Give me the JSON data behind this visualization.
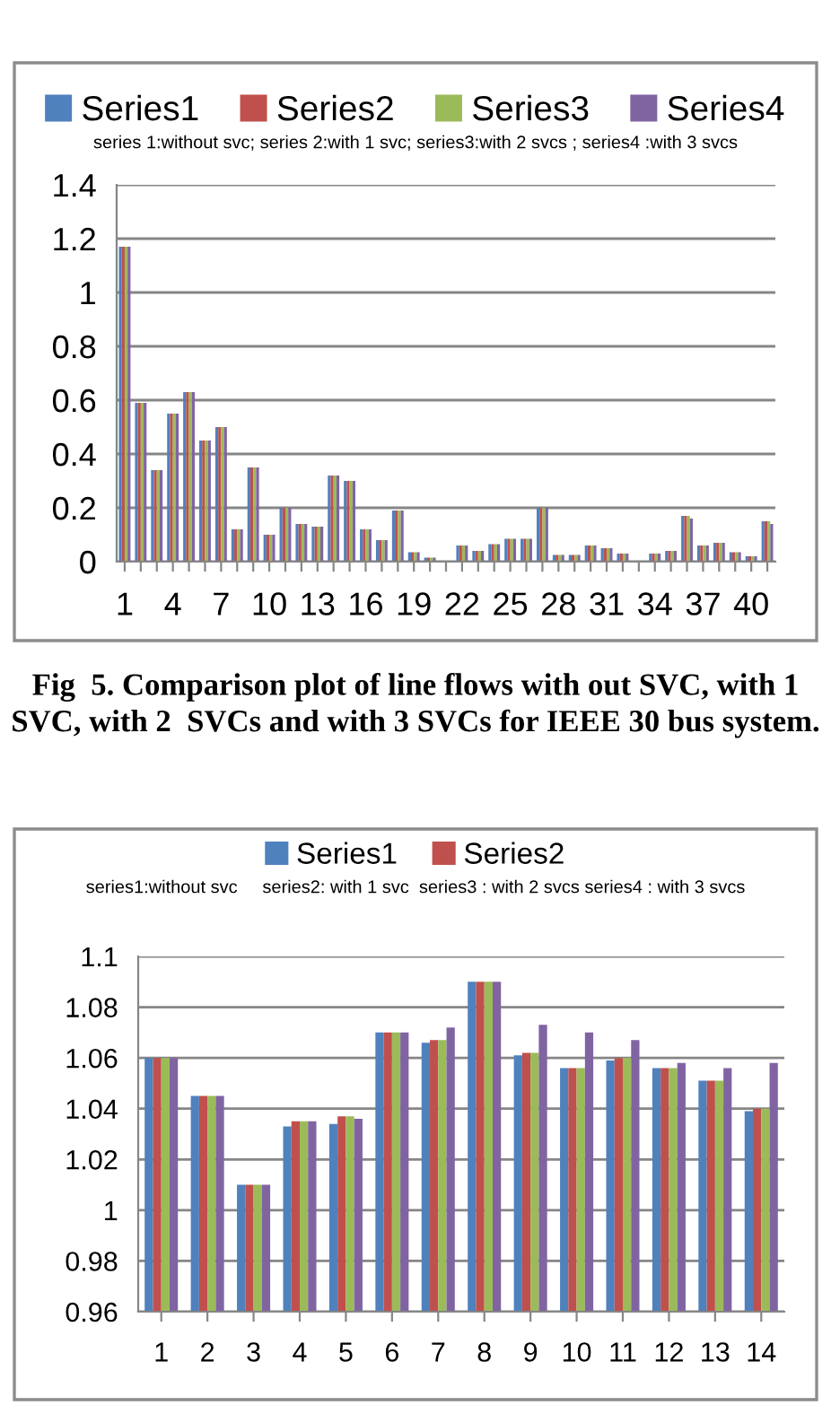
{
  "chart_data": [
    {
      "type": "bar",
      "subtitle": "series 1:without svc; series 2:with 1 svc; series3:with 2 svcs ; series4 :with 3 svcs",
      "categories": [
        "1",
        null,
        null,
        "4",
        null,
        null,
        "7",
        null,
        null,
        "10",
        null,
        null,
        "13",
        null,
        null,
        "16",
        null,
        null,
        "19",
        null,
        null,
        "22",
        null,
        null,
        "25",
        null,
        null,
        "28",
        null,
        null,
        "31",
        null,
        null,
        "34",
        null,
        null,
        "37",
        null,
        null,
        "40",
        null
      ],
      "series": [
        {
          "name": "Series1",
          "color": "#4f81bd",
          "values": [
            1.17,
            0.59,
            0.34,
            0.55,
            0.63,
            0.45,
            0.5,
            0.12,
            0.35,
            0.1,
            0.2,
            0.14,
            0.13,
            0.32,
            0.3,
            0.12,
            0.08,
            0.19,
            0.035,
            0.015,
            0,
            0.06,
            0.04,
            0.065,
            0.085,
            0.085,
            0.2,
            0.025,
            0.025,
            0.06,
            0.05,
            0.03,
            null,
            0.03,
            0.04,
            0.17,
            0.06,
            0.07,
            0.035,
            0.02,
            0.15
          ]
        },
        {
          "name": "Series2",
          "color": "#c0504d",
          "values": [
            1.17,
            0.59,
            0.34,
            0.55,
            0.63,
            0.45,
            0.5,
            0.12,
            0.35,
            0.1,
            0.2,
            0.14,
            0.13,
            0.32,
            0.3,
            0.12,
            0.08,
            0.19,
            0.035,
            0.015,
            0,
            0.06,
            0.04,
            0.065,
            0.085,
            0.085,
            0.2,
            0.025,
            0.025,
            0.06,
            0.05,
            0.03,
            null,
            0.03,
            0.04,
            0.17,
            0.06,
            0.07,
            0.035,
            0.02,
            0.15
          ]
        },
        {
          "name": "Series3",
          "color": "#9bbb59",
          "values": [
            1.17,
            0.59,
            0.34,
            0.55,
            0.63,
            0.45,
            0.5,
            0.12,
            0.35,
            0.1,
            0.2,
            0.14,
            0.13,
            0.32,
            0.3,
            0.12,
            0.08,
            0.19,
            0.035,
            0.015,
            0,
            0.06,
            0.04,
            0.065,
            0.085,
            0.085,
            0.2,
            0.025,
            0.025,
            0.06,
            0.05,
            0.03,
            null,
            0.03,
            0.04,
            0.17,
            0.06,
            0.07,
            0.035,
            0.02,
            0.15
          ]
        },
        {
          "name": "Series4",
          "color": "#8064a2",
          "values": [
            1.17,
            0.59,
            0.34,
            0.55,
            0.63,
            0.45,
            0.5,
            0.12,
            0.35,
            0.1,
            0.2,
            0.14,
            0.13,
            0.32,
            0.3,
            0.12,
            0.08,
            0.19,
            0.035,
            0.015,
            0,
            0.06,
            0.04,
            0.065,
            0.085,
            0.085,
            0.2,
            0.025,
            0.025,
            0.06,
            0.05,
            0.03,
            null,
            0.03,
            0.04,
            0.16,
            0.06,
            0.07,
            0.035,
            0.02,
            0.14
          ]
        }
      ],
      "ylim": [
        0,
        1.4
      ],
      "yticks": [
        0,
        0.2,
        0.4,
        0.6,
        0.8,
        1,
        1.2,
        1.4
      ],
      "grid": "y",
      "legend": "top",
      "annotations": [
        "Fig  5. Comparison plot of line flows with out SVC, with 1 SVC, with 2  SVCs and with 3 SVCs for IEEE 30 bus system."
      ]
    },
    {
      "type": "bar",
      "subtitle": "series1:without svc     series2: with 1 svc  series3 : with 2 svcs series4 : with 3 svcs",
      "categories": [
        "1",
        "2",
        "3",
        "4",
        "5",
        "6",
        "7",
        "8",
        "9",
        "10",
        "11",
        "12",
        "13",
        "14"
      ],
      "series": [
        {
          "name": "Series1",
          "color": "#4f81bd",
          "values": [
            1.06,
            1.045,
            1.01,
            1.033,
            1.034,
            1.07,
            1.066,
            1.09,
            1.061,
            1.056,
            1.059,
            1.056,
            1.051,
            1.039
          ]
        },
        {
          "name": "Series2",
          "color": "#c0504d",
          "values": [
            1.06,
            1.045,
            1.01,
            1.035,
            1.037,
            1.07,
            1.067,
            1.09,
            1.062,
            1.056,
            1.06,
            1.056,
            1.051,
            1.04
          ]
        },
        {
          "color": "#9bbb59",
          "values": [
            1.06,
            1.045,
            1.01,
            1.035,
            1.037,
            1.07,
            1.067,
            1.09,
            1.062,
            1.056,
            1.06,
            1.056,
            1.051,
            1.04
          ]
        },
        {
          "color": "#8064a2",
          "values": [
            1.06,
            1.045,
            1.01,
            1.035,
            1.036,
            1.07,
            1.072,
            1.09,
            1.073,
            1.07,
            1.067,
            1.058,
            1.056,
            1.058
          ]
        }
      ],
      "ylim": [
        0.96,
        1.1
      ],
      "yticks": [
        0.96,
        0.98,
        1,
        1.02,
        1.04,
        1.06,
        1.08,
        1.1
      ],
      "grid": "y",
      "legend": "top"
    }
  ]
}
